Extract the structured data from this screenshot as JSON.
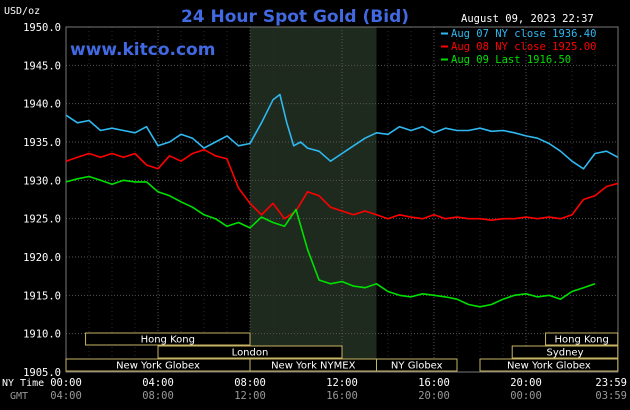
{
  "header": {
    "unit": "USD/oz",
    "title": "24 Hour Spot Gold (Bid)",
    "timestamp": "August 09, 2023 22:37",
    "site": "www.kitco.com"
  },
  "colors": {
    "background": "#000000",
    "grid": "#555555",
    "axis_text": "#ffffff",
    "gmt_text": "#999999",
    "title": "#4169e1",
    "site": "#4169e1",
    "aug07": "#2fb8f0",
    "aug08": "#ff0000",
    "aug09": "#00e000",
    "nymex_shade": "#1e2a1e",
    "session_box_fill": "#000000",
    "session_box_stroke": "#c8b464",
    "session_text": "#ffffff"
  },
  "axis": {
    "time_label_ny": "NY Time",
    "time_label_gmt": "GMT",
    "y_ticks": [
      "1950.0",
      "1945.0",
      "1940.0",
      "1935.0",
      "1930.0",
      "1925.0",
      "1920.0",
      "1915.0",
      "1910.0",
      "1905.0"
    ],
    "x_ticks_ny": [
      "00:00",
      "04:00",
      "08:00",
      "12:00",
      "16:00",
      "20:00",
      "23:59"
    ],
    "x_ticks_gmt": [
      "04:00",
      "08:00",
      "12:00",
      "16:00",
      "20:00",
      "00:00",
      "03:59"
    ]
  },
  "sessions": [
    {
      "label": "Hong Kong",
      "start": 0.85,
      "end": 8.0,
      "row": 0
    },
    {
      "label": "London",
      "start": 4.0,
      "end": 12.0,
      "row": 1
    },
    {
      "label": "New York Globex",
      "start": 0.0,
      "end": 8.0,
      "row": 2
    },
    {
      "label": "New York NYMEX",
      "start": 8.0,
      "end": 13.5,
      "row": 2
    },
    {
      "label": "NY Globex",
      "start": 13.5,
      "end": 17.0,
      "row": 2
    },
    {
      "label": "Hong Kong",
      "start": 20.85,
      "end": 23.99,
      "row": 0
    },
    {
      "label": "Sydney",
      "start": 19.4,
      "end": 23.99,
      "row": 1
    },
    {
      "label": "New York Globex",
      "start": 18.0,
      "end": 23.99,
      "row": 2
    }
  ],
  "chart_data": {
    "type": "line",
    "title": "24 Hour Spot Gold (Bid)",
    "ylabel": "USD/oz",
    "xlabel": "NY Time",
    "xlim": [
      0,
      24
    ],
    "ylim": [
      1905,
      1950
    ],
    "grid": true,
    "legend_position": "top-right",
    "shaded_region": {
      "start": 8.0,
      "end": 13.5
    },
    "series": [
      {
        "name": "Aug 07 NY close 1936.40",
        "color_key": "aug07",
        "x": [
          0,
          0.5,
          1,
          1.5,
          2,
          2.5,
          3,
          3.5,
          4,
          4.5,
          5,
          5.5,
          6,
          6.5,
          7,
          7.5,
          8,
          8.5,
          9,
          9.3,
          9.6,
          9.9,
          10.2,
          10.5,
          11,
          11.5,
          12,
          12.5,
          13,
          13.5,
          14,
          14.5,
          15,
          15.5,
          16,
          16.5,
          17,
          17.5,
          18,
          18.5,
          19,
          19.5,
          20,
          20.5,
          21,
          21.5,
          22,
          22.5,
          23,
          23.5,
          24
        ],
        "values": [
          1938.5,
          1937.5,
          1937.8,
          1936.5,
          1936.8,
          1936.5,
          1936.2,
          1937.0,
          1934.5,
          1935.0,
          1936.0,
          1935.5,
          1934.2,
          1935.0,
          1935.8,
          1934.5,
          1934.8,
          1937.5,
          1940.5,
          1941.2,
          1937.5,
          1934.5,
          1935.0,
          1934.2,
          1933.8,
          1932.5,
          1933.5,
          1934.5,
          1935.5,
          1936.2,
          1936.0,
          1937.0,
          1936.5,
          1937.0,
          1936.2,
          1936.8,
          1936.5,
          1936.5,
          1936.8,
          1936.4,
          1936.5,
          1936.2,
          1935.8,
          1935.5,
          1934.8,
          1933.8,
          1932.5,
          1931.5,
          1933.5,
          1933.8,
          1933.0
        ]
      },
      {
        "name": "Aug 08 NY close 1925.00",
        "color_key": "aug08",
        "x": [
          0,
          0.5,
          1,
          1.5,
          2,
          2.5,
          3,
          3.5,
          4,
          4.5,
          5,
          5.5,
          6,
          6.5,
          7,
          7.5,
          8,
          8.5,
          9,
          9.5,
          10,
          10.5,
          11,
          11.5,
          12,
          12.5,
          13,
          13.5,
          14,
          14.5,
          15,
          15.5,
          16,
          16.5,
          17,
          17.5,
          18,
          18.5,
          19,
          19.5,
          20,
          20.5,
          21,
          21.5,
          22,
          22.5,
          23,
          23.5,
          24
        ],
        "values": [
          1932.5,
          1933.0,
          1933.5,
          1933.0,
          1933.5,
          1933.0,
          1933.5,
          1932.0,
          1931.5,
          1933.2,
          1932.5,
          1933.5,
          1934.0,
          1933.2,
          1932.8,
          1929.0,
          1927.0,
          1925.5,
          1927.0,
          1925.0,
          1926.0,
          1928.5,
          1928.0,
          1926.5,
          1926.0,
          1925.5,
          1926.0,
          1925.5,
          1925.0,
          1925.5,
          1925.2,
          1925.0,
          1925.5,
          1925.0,
          1925.2,
          1925.0,
          1925.0,
          1924.8,
          1925.0,
          1925.0,
          1925.2,
          1925.0,
          1925.2,
          1925.0,
          1925.5,
          1927.5,
          1928.0,
          1929.2,
          1929.6
        ]
      },
      {
        "name": "Aug 09 Last 1916.50",
        "color_key": "aug09",
        "x": [
          0,
          0.5,
          1,
          1.5,
          2,
          2.5,
          3,
          3.5,
          4,
          4.5,
          5,
          5.5,
          6,
          6.5,
          7,
          7.5,
          8,
          8.5,
          9,
          9.5,
          10,
          10.5,
          11,
          11.5,
          12,
          12.5,
          13,
          13.5,
          14,
          14.5,
          15,
          15.5,
          16,
          16.5,
          17,
          17.5,
          18,
          18.5,
          19,
          19.5,
          20,
          20.5,
          21,
          21.5,
          22,
          22.5,
          23
        ],
        "values": [
          1929.8,
          1930.2,
          1930.5,
          1930.0,
          1929.5,
          1930.0,
          1929.8,
          1929.8,
          1928.5,
          1928.0,
          1927.2,
          1926.5,
          1925.5,
          1925.0,
          1924.0,
          1924.5,
          1923.8,
          1925.2,
          1924.5,
          1924.0,
          1926.2,
          1921.0,
          1917.0,
          1916.5,
          1916.8,
          1916.2,
          1916.0,
          1916.5,
          1915.5,
          1915.0,
          1914.8,
          1915.2,
          1915.0,
          1914.8,
          1914.5,
          1913.8,
          1913.5,
          1913.8,
          1914.5,
          1915.0,
          1915.2,
          1914.8,
          1915.0,
          1914.5,
          1915.5,
          1916.0,
          1916.5
        ]
      }
    ]
  }
}
